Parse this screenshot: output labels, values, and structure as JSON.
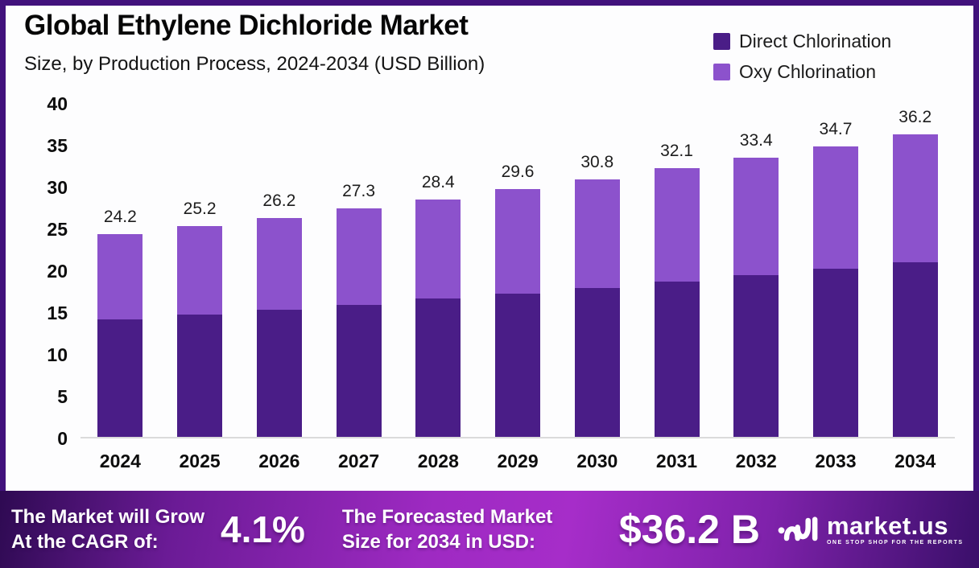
{
  "colors": {
    "frame_border": "#41127C",
    "panel_bg": "#FDFDFE",
    "direct_chlorination": "#4A1D87",
    "oxy_chlorination": "#8C52CC",
    "axis_line": "#DBDBDB",
    "banner_mid": "#A62DC9",
    "banner_edge": "#2E0A52",
    "text_dark": "#0d0d0d",
    "banner_text": "#FFFFFF"
  },
  "header": {
    "title": "Global Ethylene Dichloride Market",
    "subtitle": "Size, by Production Process, 2024-2034 (USD Billion)"
  },
  "chart_data": {
    "type": "bar",
    "stacked": true,
    "title": "Global Ethylene Dichloride Market",
    "subtitle": "Size, by Production Process, 2024-2034 (USD Billion)",
    "categories": [
      "2024",
      "2025",
      "2026",
      "2027",
      "2028",
      "2029",
      "2030",
      "2031",
      "2032",
      "2033",
      "2034"
    ],
    "series": [
      {
        "name": "Direct Chlorination",
        "color": "#4A1D87",
        "values": [
          14.0,
          14.6,
          15.2,
          15.8,
          16.5,
          17.1,
          17.8,
          18.6,
          19.3,
          20.1,
          20.9
        ]
      },
      {
        "name": "Oxy Chlorination",
        "color": "#8C52CC",
        "values": [
          10.2,
          10.6,
          11.0,
          11.5,
          11.9,
          12.5,
          13.0,
          13.5,
          14.1,
          14.6,
          15.3
        ]
      }
    ],
    "totals": [
      24.2,
      25.2,
      26.2,
      27.3,
      28.4,
      29.6,
      30.8,
      32.1,
      33.4,
      34.7,
      36.2
    ],
    "total_labels": [
      "24.2",
      "25.2",
      "26.2",
      "27.3",
      "28.4",
      "29.6",
      "30.8",
      "32.1",
      "33.4",
      "34.7",
      "36.2"
    ],
    "xlabel": "",
    "ylabel": "",
    "ylim": [
      0,
      40
    ],
    "yticks": [
      40,
      35,
      30,
      25,
      20,
      15,
      10,
      5,
      0
    ],
    "grid": false,
    "legend_position": "top-right"
  },
  "footer": {
    "cagr": {
      "line1": "The Market will Grow",
      "line2": "At the CAGR of:",
      "value": "4.1%"
    },
    "forecast": {
      "line1": "The Forecasted Market",
      "line2": "Size for 2034 in USD:",
      "value": "$36.2 B"
    },
    "brand": {
      "name": "market.us",
      "tagline": "ONE STOP SHOP FOR THE REPORTS"
    }
  }
}
